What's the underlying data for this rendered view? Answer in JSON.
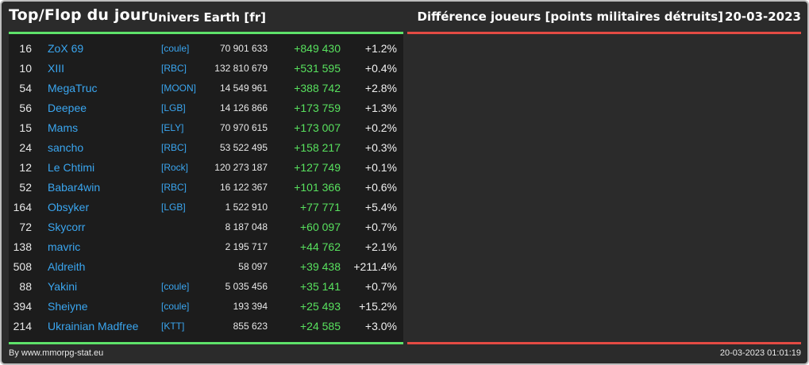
{
  "header": {
    "title": "Top/Flop du jour",
    "universe": "Univers Earth [fr]",
    "metric": "Différence joueurs [points militaires détruits]",
    "date": "20-03-2023"
  },
  "top_rows": [
    {
      "rank": "16",
      "name": "ZoX 69",
      "tag": "[coule]",
      "points": "70 901 633",
      "diff": "+849 430",
      "pct": "+1.2%"
    },
    {
      "rank": "10",
      "name": "XIII",
      "tag": "[RBC]",
      "points": "132 810 679",
      "diff": "+531 595",
      "pct": "+0.4%"
    },
    {
      "rank": "54",
      "name": "MegaTruc",
      "tag": "[MOON]",
      "points": "14 549 961",
      "diff": "+388 742",
      "pct": "+2.8%"
    },
    {
      "rank": "56",
      "name": "Deepee",
      "tag": "[LGB]",
      "points": "14 126 866",
      "diff": "+173 759",
      "pct": "+1.3%"
    },
    {
      "rank": "15",
      "name": "Mams",
      "tag": "[ELY]",
      "points": "70 970 615",
      "diff": "+173 007",
      "pct": "+0.2%"
    },
    {
      "rank": "24",
      "name": "sancho",
      "tag": "[RBC]",
      "points": "53 522 495",
      "diff": "+158 217",
      "pct": "+0.3%"
    },
    {
      "rank": "12",
      "name": "Le Chtimi",
      "tag": "[Rock]",
      "points": "120 273 187",
      "diff": "+127 749",
      "pct": "+0.1%"
    },
    {
      "rank": "52",
      "name": "Babar4win",
      "tag": "[RBC]",
      "points": "16 122 367",
      "diff": "+101 366",
      "pct": "+0.6%"
    },
    {
      "rank": "164",
      "name": "Obsyker",
      "tag": "[LGB]",
      "points": "1 522 910",
      "diff": "+77 771",
      "pct": "+5.4%"
    },
    {
      "rank": "72",
      "name": "Skycorr",
      "tag": "",
      "points": "8 187 048",
      "diff": "+60 097",
      "pct": "+0.7%"
    },
    {
      "rank": "138",
      "name": "mavric",
      "tag": "",
      "points": "2 195 717",
      "diff": "+44 762",
      "pct": "+2.1%"
    },
    {
      "rank": "508",
      "name": "Aldreith",
      "tag": "",
      "points": "58 097",
      "diff": "+39 438",
      "pct": "+211.4%"
    },
    {
      "rank": "88",
      "name": "Yakini",
      "tag": "[coule]",
      "points": "5 035 456",
      "diff": "+35 141",
      "pct": "+0.7%"
    },
    {
      "rank": "394",
      "name": "Sheiyne",
      "tag": "[coule]",
      "points": "193 394",
      "diff": "+25 493",
      "pct": "+15.2%"
    },
    {
      "rank": "214",
      "name": "Ukrainian Madfree",
      "tag": "[KTT]",
      "points": "855 623",
      "diff": "+24 585",
      "pct": "+3.0%"
    }
  ],
  "footer": {
    "credit": "By www.mmorpg-stat.eu",
    "timestamp": "20-03-2023 01:01:19"
  },
  "colors": {
    "background": "#2b2b2b",
    "panel": "#1c1c1c",
    "top_accent": "#5ee26a",
    "flop_accent": "#e44b44",
    "link": "#3aa6f0",
    "gain": "#58e15e"
  }
}
